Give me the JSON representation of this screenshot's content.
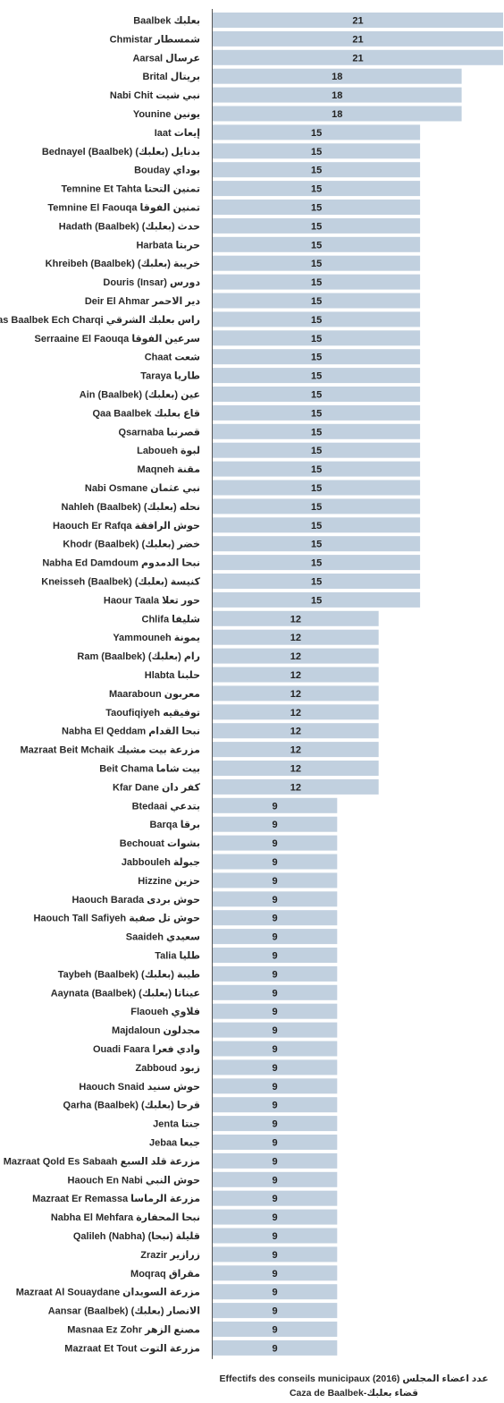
{
  "chart_data": {
    "type": "bar",
    "orientation": "horizontal",
    "title_fr": "Effectifs des conseils municipaux (2016)",
    "title_ar": "عدد اعضاء المجلس",
    "subtitle_fr": "Caza de Baalbek",
    "subtitle_ar": "قضاء بعلبك",
    "bar_color": "#c1d0df",
    "axis_color": "#555555",
    "xlim": [
      0,
      21
    ],
    "grid": false,
    "legend": "none",
    "categories": [
      "Baalbek بعلبك",
      "Chmistar شمسطار",
      "Aarsal عرسال",
      "Brital بريتال",
      "Nabi Chit نبي شيت",
      "Younine يونين",
      "Iaat إيعات",
      "Bednayel (Baalbek) بدنايل (بعلبك)",
      "Bouday بوداي",
      "Temnine Et Tahta تمنين التحتا",
      "Temnine El Faouqa تمنين الفوقا",
      "Hadath (Baalbek) حدث (بعلبك)",
      "Harbata حربتا",
      "Khreibeh (Baalbek) خريبة (بعلبك)",
      "Douris (Insar) دورس",
      "Deir El Ahmar دير الاحمر",
      "Ras Baalbek Ech Charqi راس بعلبك الشرقي",
      "Serraaine El Faouqa سرعين الفوقا",
      "Chaat شعت",
      "Taraya طاريا",
      "Ain (Baalbek) عين (بعلبك)",
      "Qaa Baalbek قاع بعلبك",
      "Qsarnaba قصرنبا",
      "Laboueh لبوة",
      "Maqneh مقنة",
      "Nabi Osmane نبي عثمان",
      "Nahleh (Baalbek) نحله (بعلبك)",
      "Haouch Er Rafqa حوش الرافقة",
      "Khodr (Baalbek) خضر (بعلبك)",
      "Nabha Ed Damdoum نبحا الدمدوم",
      "Kneisseh (Baalbek) كنيسة (بعلبك)",
      "Haour Taala حور تعلا",
      "Chlifa شليفا",
      "Yammouneh يمونة",
      "Ram (Baalbek) رام (بعلبك)",
      "Hlabta حلبتا",
      "Maaraboun معربون",
      "Taoufiqiyeh توفيقيه",
      "Nabha El Qeddam نبحا القدام",
      "Mazraat Beit Mchaik مزرعة بيت مشيك",
      "Beit Chama بيت شاما",
      "Kfar Dane كفر دان",
      "Btedaai بتدعي",
      "Barqa برقا",
      "Bechouat بشوات",
      "Jabbouleh جبولة",
      "Hizzine حزين",
      "Haouch Barada حوش بردى",
      "Haouch Tall Safiyeh حوش تل صفية",
      "Saaideh سعيدي",
      "Talia طليا",
      "Taybeh (Baalbek) طيبة (بعلبك)",
      "Aaynata (Baalbek) عيناتا (بعلبك)",
      "Flaoueh فلاوي",
      "Majdaloun مجدلون",
      "Ouadi Faara وادي فعرا",
      "Zabboud زبود",
      "Haouch Snaid حوش سنيد",
      "Qarha (Baalbek) قرحا (بعلبك)",
      "Jenta جنتا",
      "Jebaa جبعا",
      "Mazraat Qold Es Sabaah مزرعة قلد السبع",
      "Haouch En Nabi حوش النبي",
      "Mazraat Er Remassa مزرعة الرماسا",
      "Nabha El Mehfara نبحا المحفارة",
      "Qalileh (Nabha) قليلة (نبحا)",
      "Zrazir زرازير",
      "Moqraq مقراق",
      "Mazraat Al Souaydane مزرعة السويدان",
      "Aansar (Baalbek) الانصار (بعلبك)",
      "Masnaa Ez Zohr مصنع الزهر",
      "Mazraat Et Tout مزرعة التوت"
    ],
    "values": [
      21,
      21,
      21,
      18,
      18,
      18,
      15,
      15,
      15,
      15,
      15,
      15,
      15,
      15,
      15,
      15,
      15,
      15,
      15,
      15,
      15,
      15,
      15,
      15,
      15,
      15,
      15,
      15,
      15,
      15,
      15,
      15,
      12,
      12,
      12,
      12,
      12,
      12,
      12,
      12,
      12,
      12,
      9,
      9,
      9,
      9,
      9,
      9,
      9,
      9,
      9,
      9,
      9,
      9,
      9,
      9,
      9,
      9,
      9,
      9,
      9,
      9,
      9,
      9,
      9,
      9,
      9,
      9,
      9,
      9,
      9,
      9
    ]
  }
}
